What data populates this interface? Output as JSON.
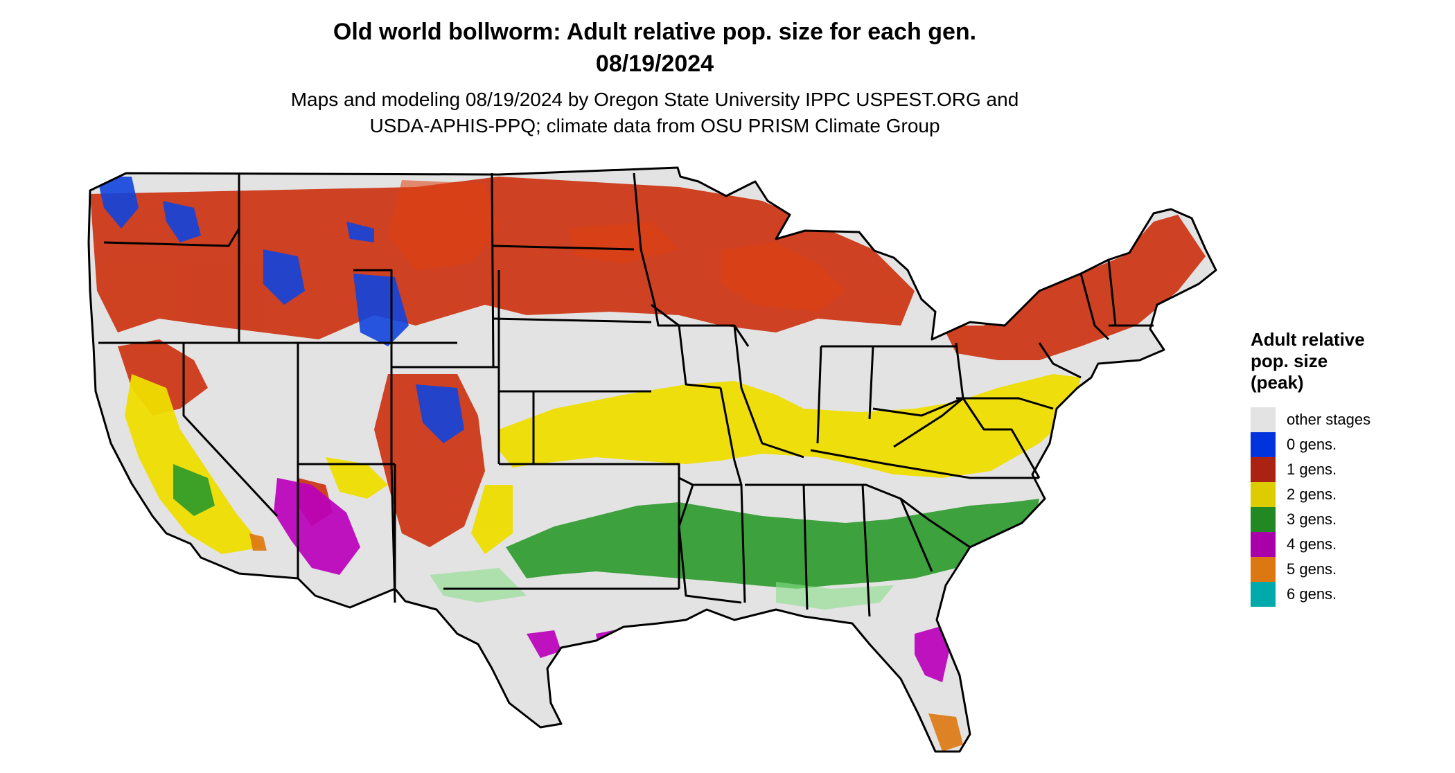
{
  "title_line1": "Old world bollworm: Adult relative pop. size for each gen.",
  "title_line2": "08/19/2024",
  "subtitle_line1": "Maps and modeling 08/19/2024 by Oregon State University IPPC USPEST.ORG and",
  "subtitle_line2": "USDA-APHIS-PPQ; climate data from OSU PRISM Climate Group",
  "legend": {
    "title_line1": "Adult relative",
    "title_line2": "pop. size",
    "title_line3": "(peak)",
    "items": [
      {
        "label": "other stages",
        "color": "#e3e3e3"
      },
      {
        "label": "0 gens.",
        "color": "#0033dd"
      },
      {
        "label": "1 gens.",
        "color": "#aa2211"
      },
      {
        "label": "2 gens.",
        "color": "#ddcc00"
      },
      {
        "label": "3 gens.",
        "color": "#228822"
      },
      {
        "label": "4 gens.",
        "color": "#aa00aa"
      },
      {
        "label": "5 gens.",
        "color": "#dd7711"
      },
      {
        "label": "6 gens.",
        "color": "#00aaaa"
      }
    ]
  }
}
